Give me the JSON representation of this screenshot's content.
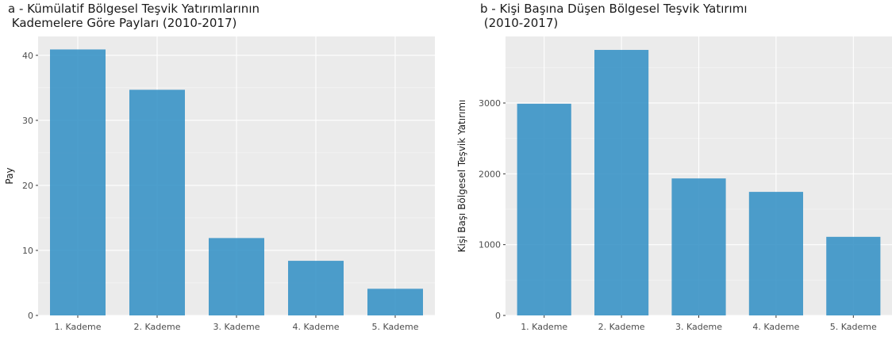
{
  "chart_data": [
    {
      "type": "bar",
      "title": "a - Kümülatif Bölgesel Teşvik Yatırımlarının\n Kademelere Göre Payları (2010-2017)",
      "xlabel": "",
      "ylabel": "Pay",
      "categories": [
        "1. Kademe",
        "2. Kademe",
        "3. Kademe",
        "4. Kademe",
        "5. Kademe"
      ],
      "values": [
        40.9,
        34.7,
        11.9,
        8.4,
        4.1
      ],
      "ylim": [
        0,
        42.9
      ],
      "yticks": [
        0,
        10,
        20,
        30,
        40
      ],
      "bar_color": "#3a93c6",
      "grid": true
    },
    {
      "type": "bar",
      "title": "b - Kişi Başına Düşen Bölgesel Teşvik Yatırımı\n (2010-2017)",
      "xlabel": "",
      "ylabel": "Kişi Başı Bölgesel Teşvik Yatırımı",
      "categories": [
        "1. Kademe",
        "2. Kademe",
        "3. Kademe",
        "4. Kademe",
        "5. Kademe"
      ],
      "values": [
        2990,
        3750,
        1935,
        1745,
        1110
      ],
      "ylim": [
        0,
        3940
      ],
      "yticks": [
        0,
        1000,
        2000,
        3000
      ],
      "bar_color": "#3a93c6",
      "grid": true
    }
  ]
}
